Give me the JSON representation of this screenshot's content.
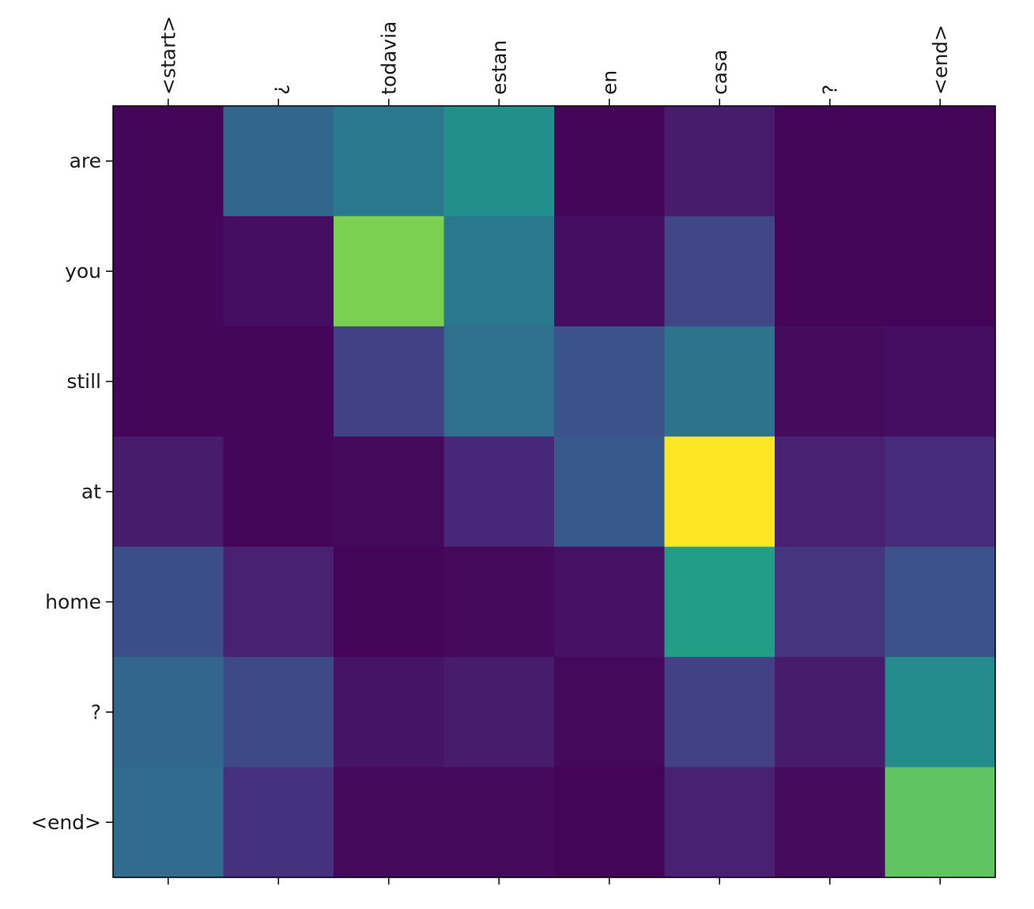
{
  "chart_data": {
    "type": "heatmap",
    "title": "",
    "xlabel": "",
    "ylabel": "",
    "x_labels": [
      "<start>",
      "¿",
      "todavia",
      "estan",
      "en",
      "casa",
      "?",
      "<end>"
    ],
    "y_labels": [
      "are",
      "you",
      "still",
      "at",
      "home",
      "?",
      "<end>"
    ],
    "colormap": "viridis",
    "value_range": [
      0,
      1
    ],
    "values": [
      [
        0.02,
        0.42,
        0.5,
        0.62,
        0.02,
        0.1,
        0.01,
        0.01
      ],
      [
        0.02,
        0.05,
        0.88,
        0.5,
        0.05,
        0.26,
        0.01,
        0.01
      ],
      [
        0.02,
        0.01,
        0.24,
        0.46,
        0.32,
        0.48,
        0.04,
        0.05
      ],
      [
        0.1,
        0.02,
        0.03,
        0.14,
        0.35,
        1.0,
        0.12,
        0.16
      ],
      [
        0.3,
        0.12,
        0.01,
        0.03,
        0.06,
        0.7,
        0.2,
        0.32
      ],
      [
        0.42,
        0.28,
        0.07,
        0.1,
        0.03,
        0.24,
        0.1,
        0.6
      ],
      [
        0.44,
        0.18,
        0.03,
        0.03,
        0.01,
        0.12,
        0.04,
        0.84
      ]
    ]
  }
}
